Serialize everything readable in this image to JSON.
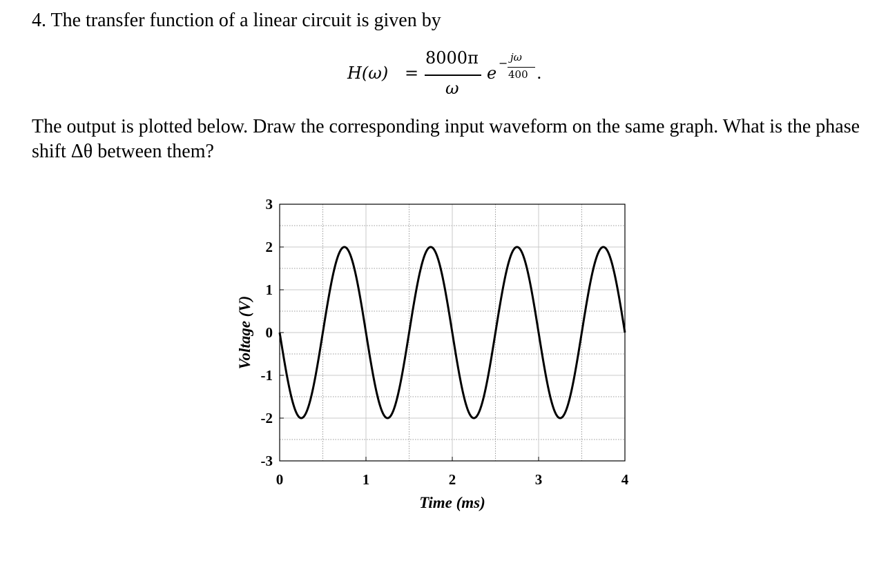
{
  "problem": {
    "title": "4. The transfer function of a linear circuit is given by",
    "question": "The output is plotted below. Draw the corresponding input waveform on the same graph. What is the phase shift Δθ between them?"
  },
  "formula": {
    "lhs": "H(ω)",
    "equals": "=",
    "numerator": "8000π",
    "denominator": "ω",
    "exp_base": "e",
    "exp_sign": "−",
    "exp_numerator": "jω",
    "exp_denominator": "400",
    "trailing": "."
  },
  "chart_data": {
    "type": "line",
    "xlabel": "Time (ms)",
    "ylabel": "Voltage (V)",
    "xlim": [
      0,
      4
    ],
    "ylim": [
      -3,
      3
    ],
    "xticks": [
      "0",
      "1",
      "2",
      "3",
      "4"
    ],
    "yticks": [
      "3",
      "2",
      "1",
      "0",
      "-1",
      "-2",
      "-3"
    ],
    "grid": "major solid, minor dotted",
    "series": [
      {
        "amplitude": 2,
        "frequency_khz": 1,
        "x": [
          0,
          0.25,
          0.5,
          0.75,
          1.0,
          1.25,
          1.5,
          1.75,
          2.0,
          2.25,
          2.5,
          2.75,
          3.0,
          3.25,
          3.5,
          3.75,
          4.0
        ],
        "values": [
          0,
          -2,
          0,
          2,
          0,
          -2,
          0,
          2,
          0,
          -2,
          0,
          2,
          0,
          -2,
          0,
          2,
          0
        ],
        "color": "#000000"
      }
    ]
  }
}
